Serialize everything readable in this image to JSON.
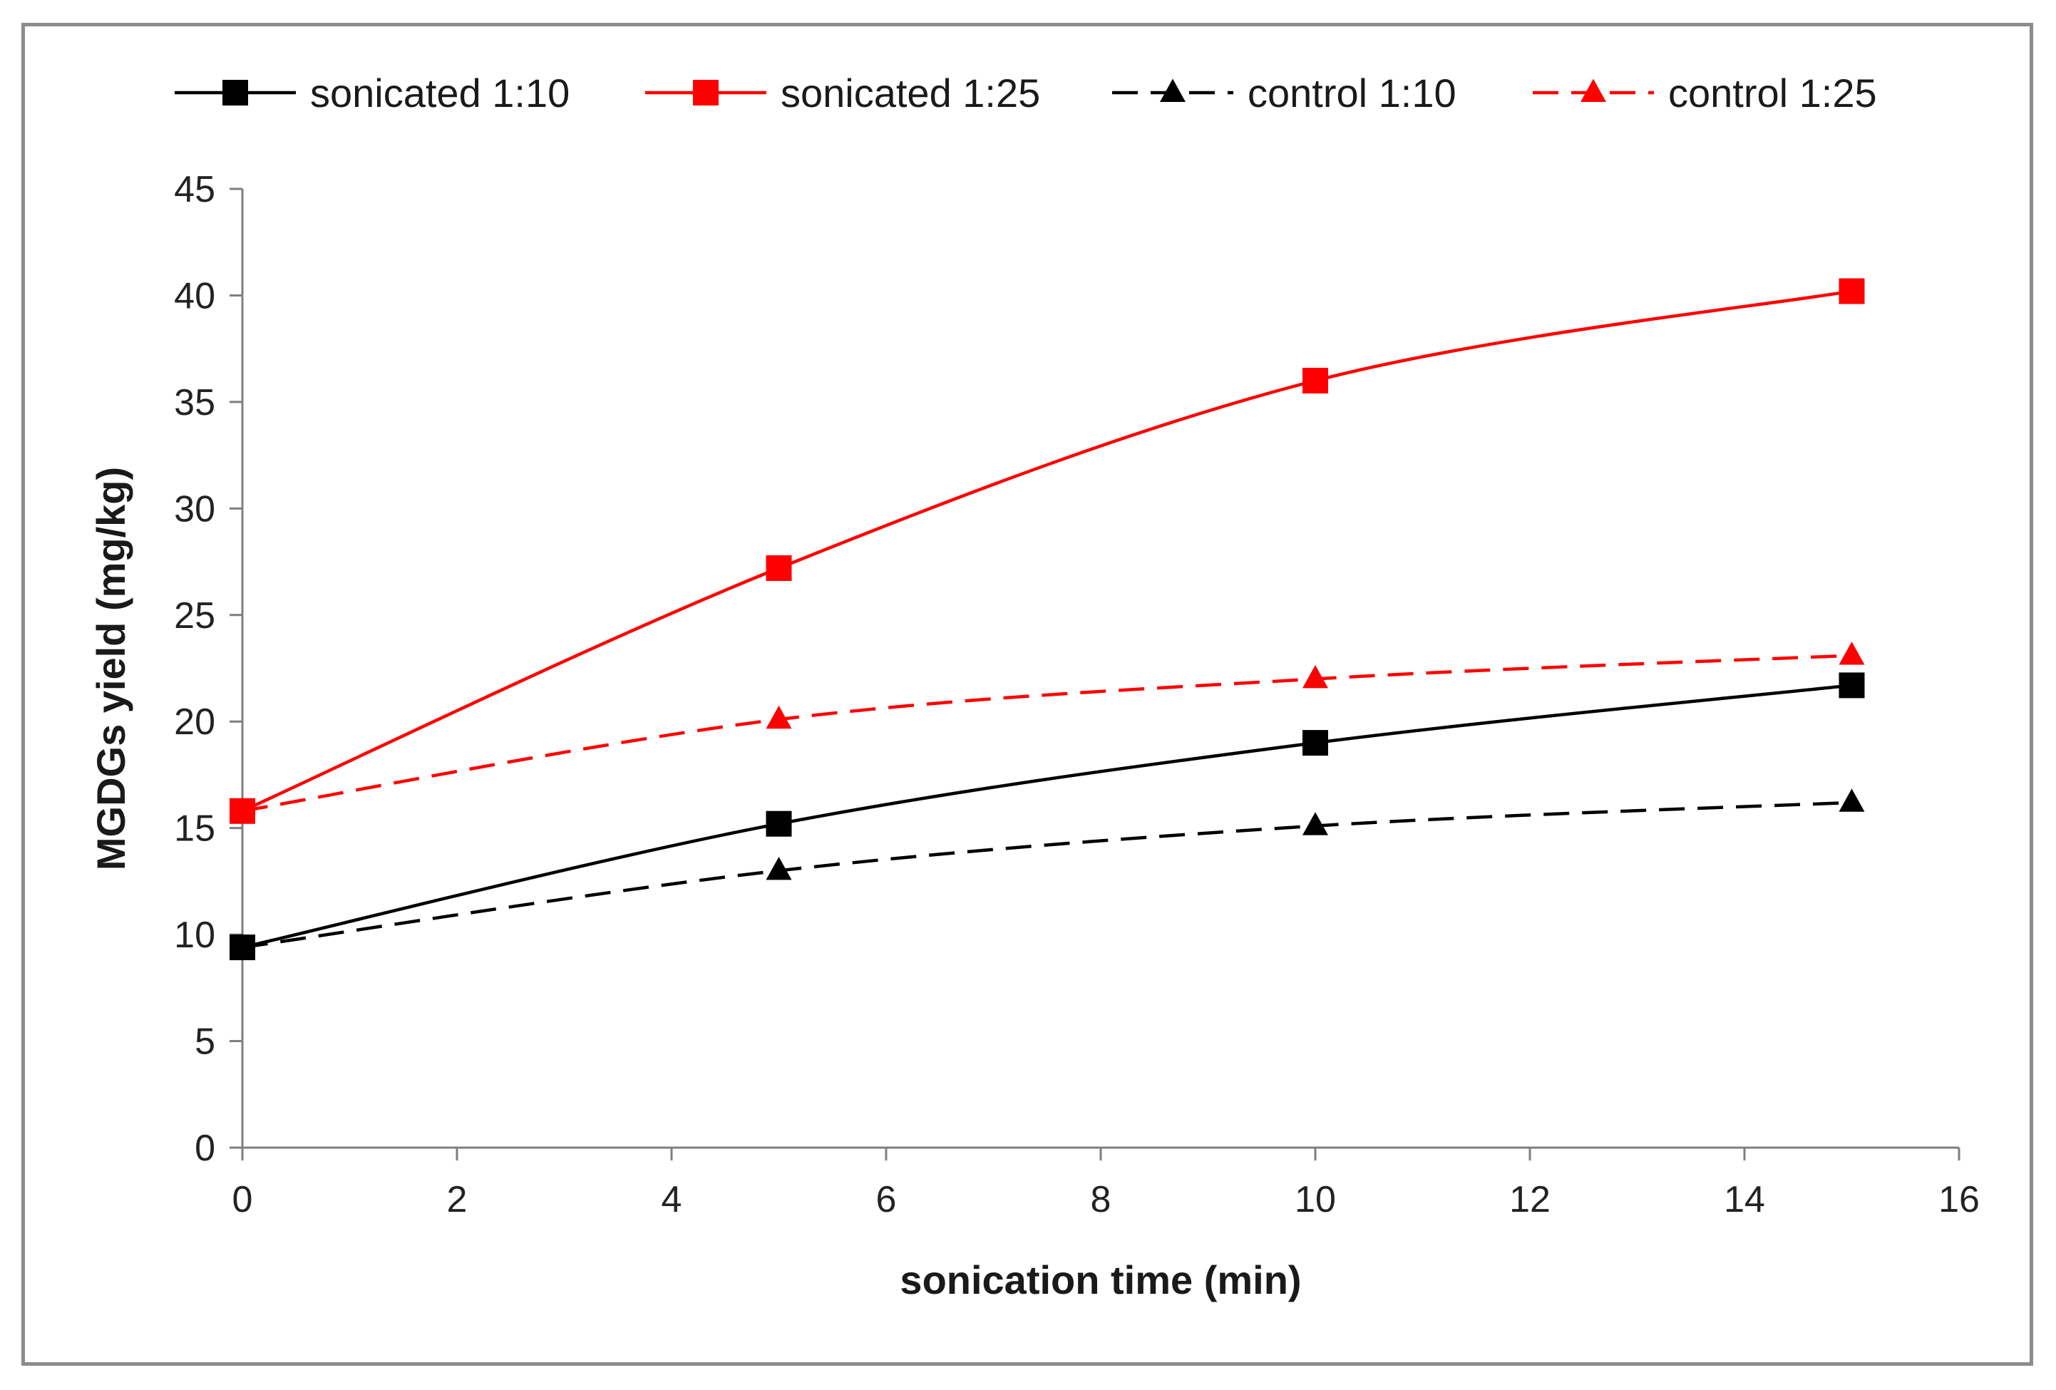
{
  "chart_data": {
    "type": "line",
    "title": "",
    "xlabel": "sonication time (min)",
    "ylabel": "MGDGs yield (mg/kg)",
    "xlim": [
      0,
      16
    ],
    "ylim": [
      0,
      45
    ],
    "xticks": [
      0,
      2,
      4,
      6,
      8,
      10,
      12,
      14,
      16
    ],
    "yticks": [
      0,
      5,
      10,
      15,
      20,
      25,
      30,
      35,
      40,
      45
    ],
    "xtick_labels": [
      "0",
      "2",
      "4",
      "6",
      "8",
      "10",
      "12",
      "14",
      "16"
    ],
    "ytick_labels": [
      "0",
      "5",
      "10",
      "15",
      "20",
      "25",
      "30",
      "35",
      "40",
      "45"
    ],
    "grid": false,
    "legend_position": "top",
    "series": [
      {
        "name": "sonicated 1:10",
        "x": [
          0,
          5,
          10,
          15
        ],
        "values": [
          9.4,
          15.2,
          19.0,
          21.7
        ],
        "color": "#000000",
        "marker": "square",
        "dashed": false
      },
      {
        "name": "sonicated 1:25",
        "x": [
          0,
          5,
          10,
          15
        ],
        "values": [
          15.8,
          27.2,
          36.0,
          40.2
        ],
        "color": "#ff0000",
        "marker": "square",
        "dashed": false
      },
      {
        "name": "control 1:10",
        "x": [
          0,
          5,
          10,
          15
        ],
        "values": [
          9.4,
          13.0,
          15.1,
          16.2
        ],
        "color": "#000000",
        "marker": "triangle",
        "dashed": true
      },
      {
        "name": "control 1:25",
        "x": [
          0,
          5,
          10,
          15
        ],
        "values": [
          15.8,
          20.1,
          22.0,
          23.1
        ],
        "color": "#ff0000",
        "marker": "triangle",
        "dashed": true
      }
    ]
  }
}
